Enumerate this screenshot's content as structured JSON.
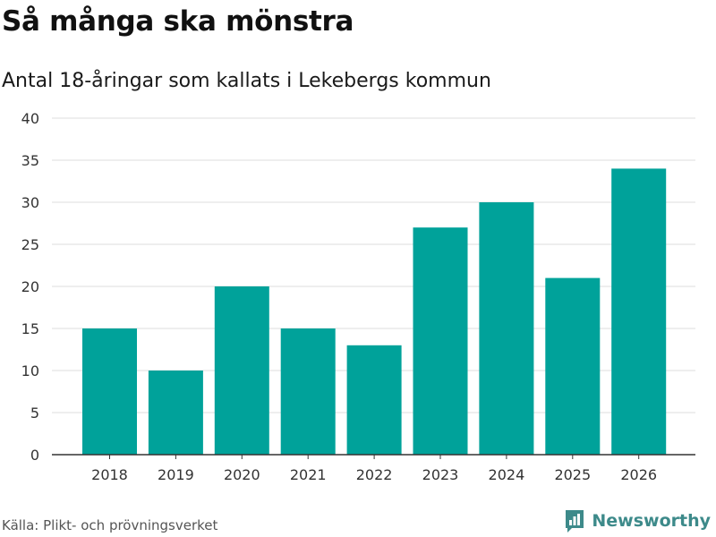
{
  "chart_data": {
    "type": "bar",
    "title": "Så många ska mönstra",
    "subtitle": "Antal 18-åringar som kallats i Lekebergs kommun",
    "categories": [
      "2018",
      "2019",
      "2020",
      "2021",
      "2022",
      "2023",
      "2024",
      "2025",
      "2026"
    ],
    "values": [
      15,
      10,
      20,
      15,
      13,
      27,
      30,
      21,
      34
    ],
    "yticks": [
      0,
      5,
      10,
      15,
      20,
      25,
      30,
      35,
      40
    ],
    "ylim": [
      0,
      40
    ],
    "xlabel": "",
    "ylabel": "",
    "grid": true,
    "bar_color": "#00a29a"
  },
  "footer": {
    "source": "Källa: Plikt- och prövningsverket",
    "brand": "Newsworthy",
    "brand_color": "#3d8a8a"
  }
}
